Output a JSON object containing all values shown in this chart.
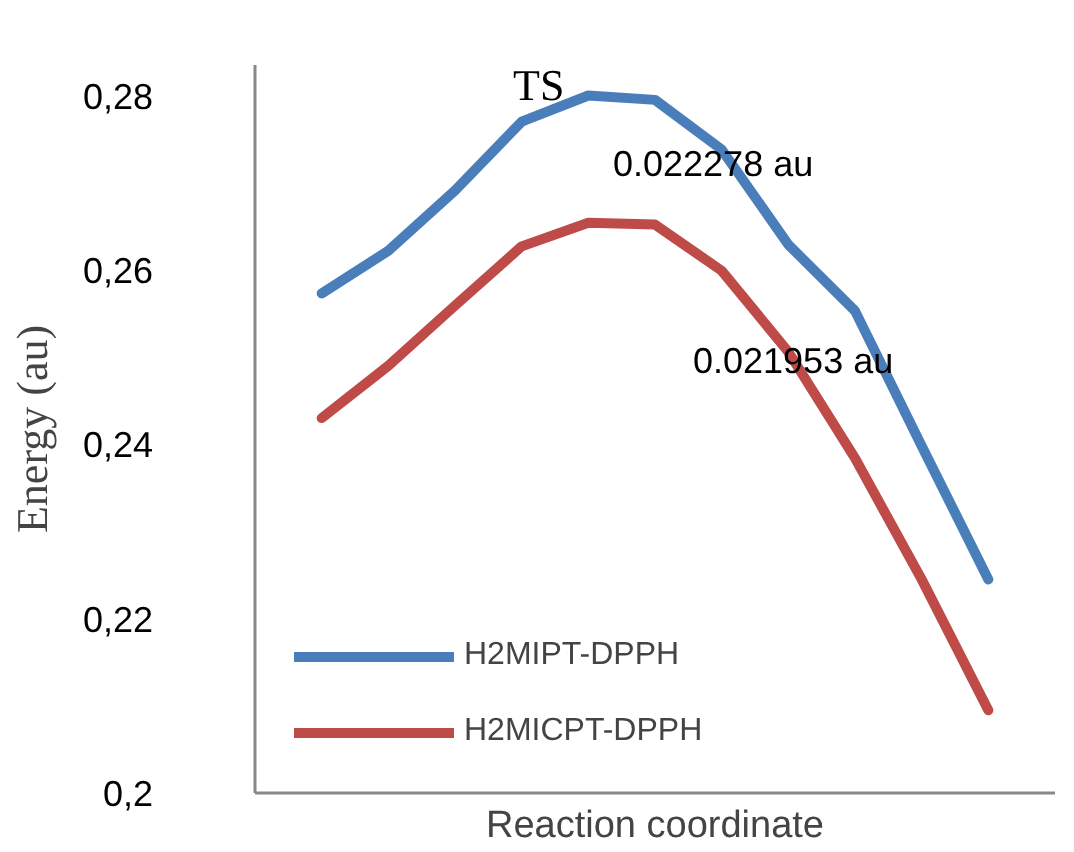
{
  "chart_data": {
    "type": "line",
    "ylabel": "Energy (au)",
    "xlabel": "Reaction coordinate",
    "categories": [
      null,
      null,
      null,
      null,
      null,
      null,
      null,
      null,
      null,
      null,
      null
    ],
    "series": [
      {
        "name": "H2MIPT-DPPH",
        "color": "#4a7ebb",
        "values": [
          0.2573,
          0.2622,
          0.2691,
          0.277,
          0.28,
          0.2795,
          0.2738,
          0.2629,
          0.2553,
          0.2398,
          0.2245
        ]
      },
      {
        "name": "H2MICPT-DPPH",
        "color": "#be4b48",
        "values": [
          0.243,
          0.249,
          0.2559,
          0.2627,
          0.2654,
          0.2652,
          0.2599,
          0.2506,
          0.2384,
          0.2245,
          0.2095
        ]
      }
    ],
    "ylim": [
      0.2,
      0.2835
    ],
    "yticks": [
      {
        "value": 0.2,
        "label": "0,2"
      },
      {
        "value": 0.22,
        "label": "0,22"
      },
      {
        "value": 0.24,
        "label": "0,24"
      },
      {
        "value": 0.26,
        "label": "0,26"
      },
      {
        "value": 0.28,
        "label": "0,28"
      }
    ],
    "annotations": [
      "TS",
      "0.022278 au",
      "0.021953  au"
    ],
    "grid": false,
    "legend": "bottom left",
    "marker": "none",
    "line_style": "solid"
  }
}
